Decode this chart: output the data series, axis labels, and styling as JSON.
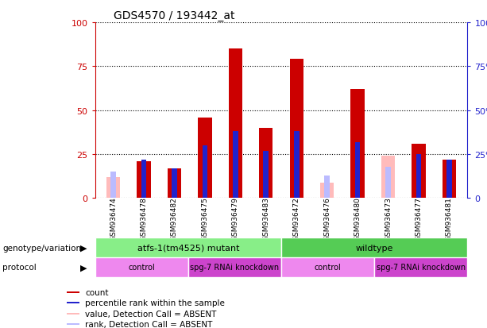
{
  "title": "GDS4570 / 193442_at",
  "samples": [
    "GSM936474",
    "GSM936478",
    "GSM936482",
    "GSM936475",
    "GSM936479",
    "GSM936483",
    "GSM936472",
    "GSM936476",
    "GSM936480",
    "GSM936473",
    "GSM936477",
    "GSM936481"
  ],
  "count": [
    0,
    21,
    17,
    46,
    85,
    40,
    79,
    0,
    62,
    0,
    31,
    22
  ],
  "percentile_rank": [
    0,
    22,
    17,
    30,
    38,
    27,
    38,
    0,
    32,
    0,
    25,
    22
  ],
  "absent_value": [
    12,
    0,
    0,
    0,
    0,
    0,
    0,
    9,
    0,
    24,
    0,
    0
  ],
  "absent_rank": [
    15,
    0,
    0,
    0,
    0,
    0,
    0,
    13,
    0,
    18,
    0,
    0
  ],
  "count_color": "#cc0000",
  "percentile_color": "#2222cc",
  "absent_value_color": "#ffbbbb",
  "absent_rank_color": "#bbbbff",
  "ylim": [
    0,
    100
  ],
  "yticks": [
    0,
    25,
    50,
    75,
    100
  ],
  "genotype_groups": [
    {
      "label": "atfs-1(tm4525) mutant",
      "start": 0,
      "end": 6,
      "color": "#88ee88"
    },
    {
      "label": "wildtype",
      "start": 6,
      "end": 12,
      "color": "#55cc55"
    }
  ],
  "protocol_groups": [
    {
      "label": "control",
      "start": 0,
      "end": 3,
      "color": "#ee88ee"
    },
    {
      "label": "spg-7 RNAi knockdown",
      "start": 3,
      "end": 6,
      "color": "#cc44cc"
    },
    {
      "label": "control",
      "start": 6,
      "end": 9,
      "color": "#ee88ee"
    },
    {
      "label": "spg-7 RNAi knockdown",
      "start": 9,
      "end": 12,
      "color": "#cc44cc"
    }
  ],
  "legend_items": [
    {
      "label": "count",
      "color": "#cc0000"
    },
    {
      "label": "percentile rank within the sample",
      "color": "#2222cc"
    },
    {
      "label": "value, Detection Call = ABSENT",
      "color": "#ffbbbb"
    },
    {
      "label": "rank, Detection Call = ABSENT",
      "color": "#bbbbff"
    }
  ],
  "bar_width": 0.25,
  "label_row1": "genotype/variation",
  "label_row2": "protocol",
  "xtick_bg": "#cccccc"
}
